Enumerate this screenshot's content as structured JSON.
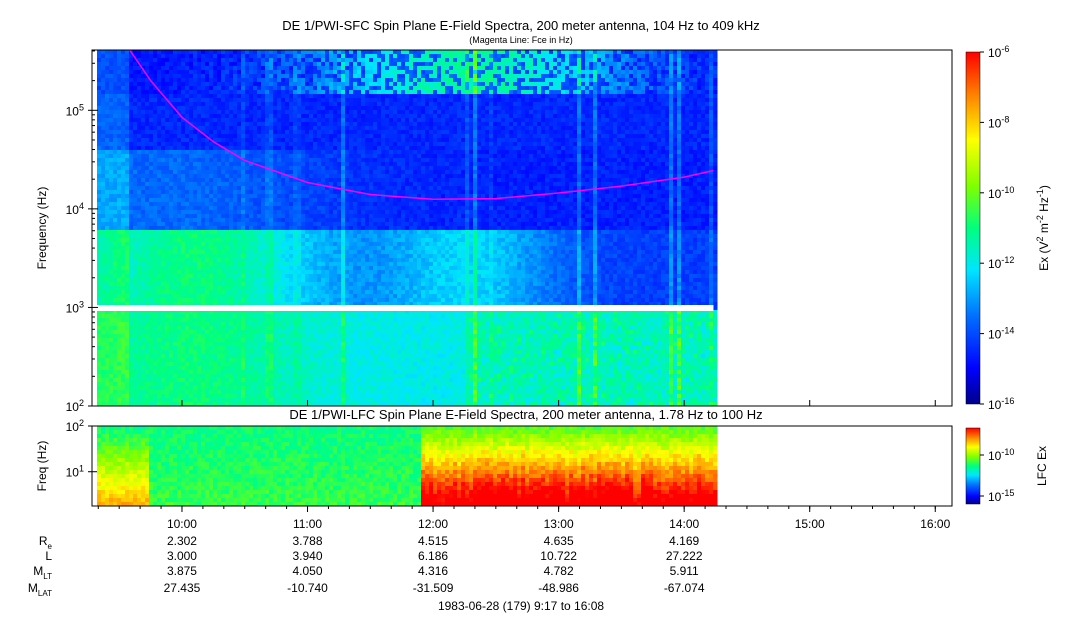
{
  "chart_data": [
    {
      "type": "heatmap",
      "panel": "SFC",
      "title": "DE 1/PWI-SFC  Spin Plane E-Field Spectra, 200 meter antenna, 104 Hz to 409 kHz",
      "subtitle": "(Magenta Line: Fce in Hz)",
      "ylabel": "Frequency (Hz)",
      "yscale": "log",
      "ylim": [
        100,
        409000
      ],
      "yticks": [
        {
          "label_base": "10",
          "label_exp": "2",
          "value": 100
        },
        {
          "label_base": "10",
          "label_exp": "3",
          "value": 1000
        },
        {
          "label_base": "10",
          "label_exp": "4",
          "value": 10000
        },
        {
          "label_base": "10",
          "label_exp": "5",
          "value": 100000
        }
      ],
      "xlim": [
        "09:17",
        "16:08"
      ],
      "data_end": "14:14",
      "colorbar": {
        "label_pre": "Ex (V",
        "label_sup1": "2",
        "label_mid": " m",
        "label_sup2": "-2",
        "label_mid2": " Hz",
        "label_sup3": "-1",
        "label_post": ")",
        "scale": "log",
        "range": [
          1e-16,
          1e-06
        ],
        "ticks": [
          {
            "base": "10",
            "exp": "-6"
          },
          {
            "base": "10",
            "exp": "-8"
          },
          {
            "base": "10",
            "exp": "-10"
          },
          {
            "base": "10",
            "exp": "-12"
          },
          {
            "base": "10",
            "exp": "-14"
          },
          {
            "base": "10",
            "exp": "-16"
          }
        ]
      },
      "series": [
        {
          "name": "Fce",
          "color": "#ff00ff",
          "x": [
            "09:35",
            "09:45",
            "10:00",
            "10:15",
            "10:30",
            "11:00",
            "11:30",
            "12:00",
            "12:30",
            "13:00",
            "13:30",
            "14:00",
            "14:14"
          ],
          "y": [
            409000,
            200000,
            85000,
            48000,
            31000,
            18500,
            14000,
            12500,
            12700,
            14500,
            17000,
            21000,
            24500
          ]
        }
      ]
    },
    {
      "type": "heatmap",
      "panel": "LFC",
      "title": "DE 1/PWI-LFC  Spin Plane E-Field Spectra, 200 meter antenna, 1.78 Hz to 100 Hz",
      "ylabel": "Freq (Hz)",
      "yscale": "log",
      "ylim": [
        1.78,
        100
      ],
      "yticks": [
        {
          "label_base": "10",
          "label_exp": "1",
          "value": 10
        },
        {
          "label_base": "10",
          "label_exp": "2",
          "value": 100
        }
      ],
      "xlim": [
        "09:17",
        "16:08"
      ],
      "data_end": "14:14",
      "colorbar": {
        "label": "LFC Ex",
        "scale": "log",
        "ticks": [
          {
            "base": "10",
            "exp": "-10"
          },
          {
            "base": "10",
            "exp": "-15"
          }
        ]
      }
    }
  ],
  "x_axis": {
    "ticks": [
      "10:00",
      "11:00",
      "12:00",
      "13:00",
      "14:00",
      "15:00",
      "16:00"
    ],
    "footer": "1983-06-28 (179) 9:17 to 16:08"
  },
  "ephemeris": [
    {
      "label": "R",
      "sub": "e",
      "values": [
        "2.302",
        "3.788",
        "4.515",
        "4.635",
        "4.169"
      ]
    },
    {
      "label": "L",
      "sub": "",
      "values": [
        "3.000",
        "3.940",
        "6.186",
        "10.722",
        "27.222"
      ]
    },
    {
      "label": "M",
      "sub": "LT",
      "values": [
        "3.875",
        "4.050",
        "4.316",
        "4.782",
        "5.911"
      ]
    },
    {
      "label": "M",
      "sub": "LAT",
      "values": [
        "27.435",
        "-10.740",
        "-31.509",
        "-48.986",
        "-67.074"
      ]
    }
  ]
}
